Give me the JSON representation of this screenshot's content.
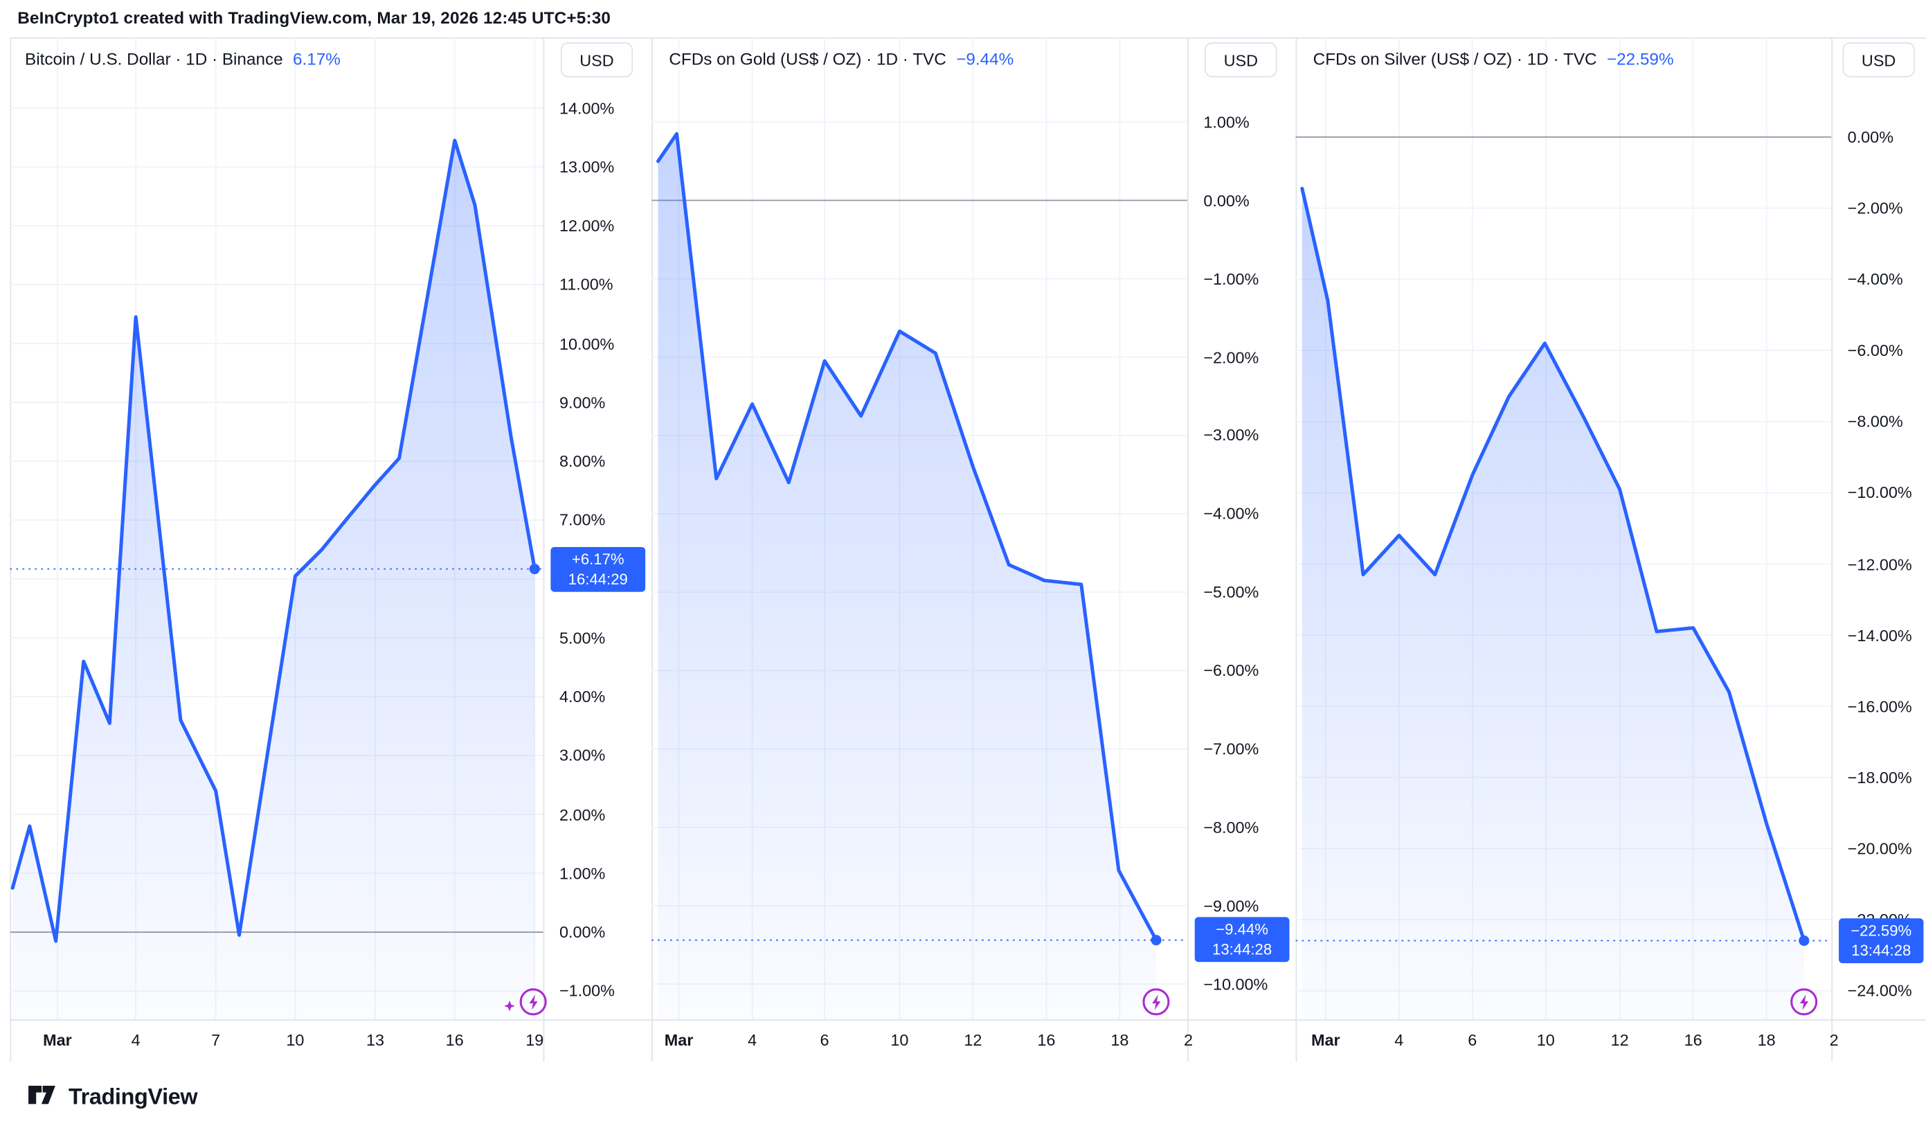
{
  "header": {
    "title": "BeInCrypto1 created with TradingView.com, Mar 19, 2026 12:45 UTC+5:30"
  },
  "footer": {
    "brand": "TradingView"
  },
  "colors": {
    "accent": "#2962ff",
    "text": "#131722",
    "grid": "#f0f3fa",
    "zero_line": "#9598a1",
    "border": "#e0e3eb",
    "flash": "#ab2bce",
    "badge_text": "#ffffff",
    "background": "#ffffff"
  },
  "chart_data": [
    {
      "type": "area",
      "title": "Bitcoin / U.S. Dollar · 1D · Binance",
      "change": "6.17%",
      "currency": "USD",
      "badge": {
        "line1": "+6.17%",
        "line2": "16:44:29"
      },
      "current_value": 6.17,
      "zero_line": 0,
      "legend_position": "top-left",
      "y_axis": {
        "min": -1.48,
        "max": 15.2,
        "unit": "%",
        "ticks": [
          14,
          13,
          12,
          11,
          10,
          9,
          8,
          7,
          6,
          5,
          4,
          3,
          2,
          1,
          0,
          -1
        ]
      },
      "x_labels": [
        {
          "t": "Mar",
          "f": 0.089,
          "bold": true
        },
        {
          "t": "4",
          "f": 0.236
        },
        {
          "t": "7",
          "f": 0.386
        },
        {
          "t": "10",
          "f": 0.535
        },
        {
          "t": "13",
          "f": 0.685
        },
        {
          "t": "16",
          "f": 0.834
        },
        {
          "t": "19",
          "f": 0.984
        }
      ],
      "points": [
        [
          0.005,
          0.75
        ],
        [
          0.037,
          1.8
        ],
        [
          0.086,
          -0.15
        ],
        [
          0.138,
          4.6
        ],
        [
          0.187,
          3.55
        ],
        [
          0.236,
          10.45
        ],
        [
          0.32,
          3.6
        ],
        [
          0.386,
          2.4
        ],
        [
          0.43,
          -0.05
        ],
        [
          0.484,
          3.1
        ],
        [
          0.535,
          6.05
        ],
        [
          0.585,
          6.5
        ],
        [
          0.63,
          7.0
        ],
        [
          0.685,
          7.6
        ],
        [
          0.73,
          8.05
        ],
        [
          0.834,
          13.45
        ],
        [
          0.872,
          12.35
        ],
        [
          0.94,
          8.4
        ],
        [
          0.984,
          6.17
        ]
      ]
    },
    {
      "type": "area",
      "title": "CFDs on Gold (US$ / OZ) · 1D · TVC",
      "change": "−9.44%",
      "currency": "USD",
      "badge": {
        "line1": "−9.44%",
        "line2": "13:44:28"
      },
      "current_value": -9.44,
      "zero_line": 0,
      "legend_position": "top-left",
      "y_axis": {
        "min": -10.45,
        "max": 2.08,
        "unit": "%",
        "ticks": [
          1,
          0,
          -1,
          -2,
          -3,
          -4,
          -5,
          -6,
          -7,
          -8,
          -9,
          -10
        ]
      },
      "x_labels": [
        {
          "t": "Mar",
          "f": 0.051,
          "bold": true
        },
        {
          "t": "4",
          "f": 0.188
        },
        {
          "t": "6",
          "f": 0.323
        },
        {
          "t": "10",
          "f": 0.463
        },
        {
          "t": "12",
          "f": 0.6
        },
        {
          "t": "16",
          "f": 0.737
        },
        {
          "t": "18",
          "f": 0.874
        },
        {
          "t": "2",
          "f": 1.002
        }
      ],
      "points": [
        [
          0.012,
          0.5
        ],
        [
          0.047,
          0.85
        ],
        [
          0.121,
          -3.55
        ],
        [
          0.188,
          -2.6
        ],
        [
          0.256,
          -3.6
        ],
        [
          0.323,
          -2.05
        ],
        [
          0.391,
          -2.75
        ],
        [
          0.463,
          -1.67
        ],
        [
          0.53,
          -1.95
        ],
        [
          0.6,
          -3.4
        ],
        [
          0.667,
          -4.65
        ],
        [
          0.733,
          -4.85
        ],
        [
          0.802,
          -4.9
        ],
        [
          0.872,
          -8.55
        ],
        [
          0.942,
          -9.44
        ]
      ]
    },
    {
      "type": "area",
      "title": "CFDs on Silver (US$ / OZ) · 1D · TVC",
      "change": "−22.59%",
      "currency": "USD",
      "badge": {
        "line1": "−22.59%",
        "line2": "13:44:28"
      },
      "current_value": -22.59,
      "zero_line": 0,
      "legend_position": "top-left",
      "y_axis": {
        "min": -24.8,
        "max": 2.8,
        "unit": "%",
        "ticks": [
          0,
          -2,
          -4,
          -6,
          -8,
          -10,
          -12,
          -14,
          -16,
          -18,
          -20,
          -22,
          -24
        ]
      },
      "x_labels": [
        {
          "t": "Mar",
          "f": 0.056,
          "bold": true
        },
        {
          "t": "4",
          "f": 0.193
        },
        {
          "t": "6",
          "f": 0.33
        },
        {
          "t": "10",
          "f": 0.467
        },
        {
          "t": "12",
          "f": 0.605
        },
        {
          "t": "16",
          "f": 0.742
        },
        {
          "t": "18",
          "f": 0.879
        },
        {
          "t": "2",
          "f": 1.005
        }
      ],
      "points": [
        [
          0.012,
          -1.45
        ],
        [
          0.06,
          -4.6
        ],
        [
          0.126,
          -12.3
        ],
        [
          0.193,
          -11.2
        ],
        [
          0.26,
          -12.3
        ],
        [
          0.33,
          -9.5
        ],
        [
          0.398,
          -7.3
        ],
        [
          0.465,
          -5.8
        ],
        [
          0.535,
          -7.8
        ],
        [
          0.605,
          -9.9
        ],
        [
          0.674,
          -13.9
        ],
        [
          0.742,
          -13.8
        ],
        [
          0.809,
          -15.6
        ],
        [
          0.879,
          -19.3
        ],
        [
          0.949,
          -22.59
        ]
      ]
    }
  ]
}
